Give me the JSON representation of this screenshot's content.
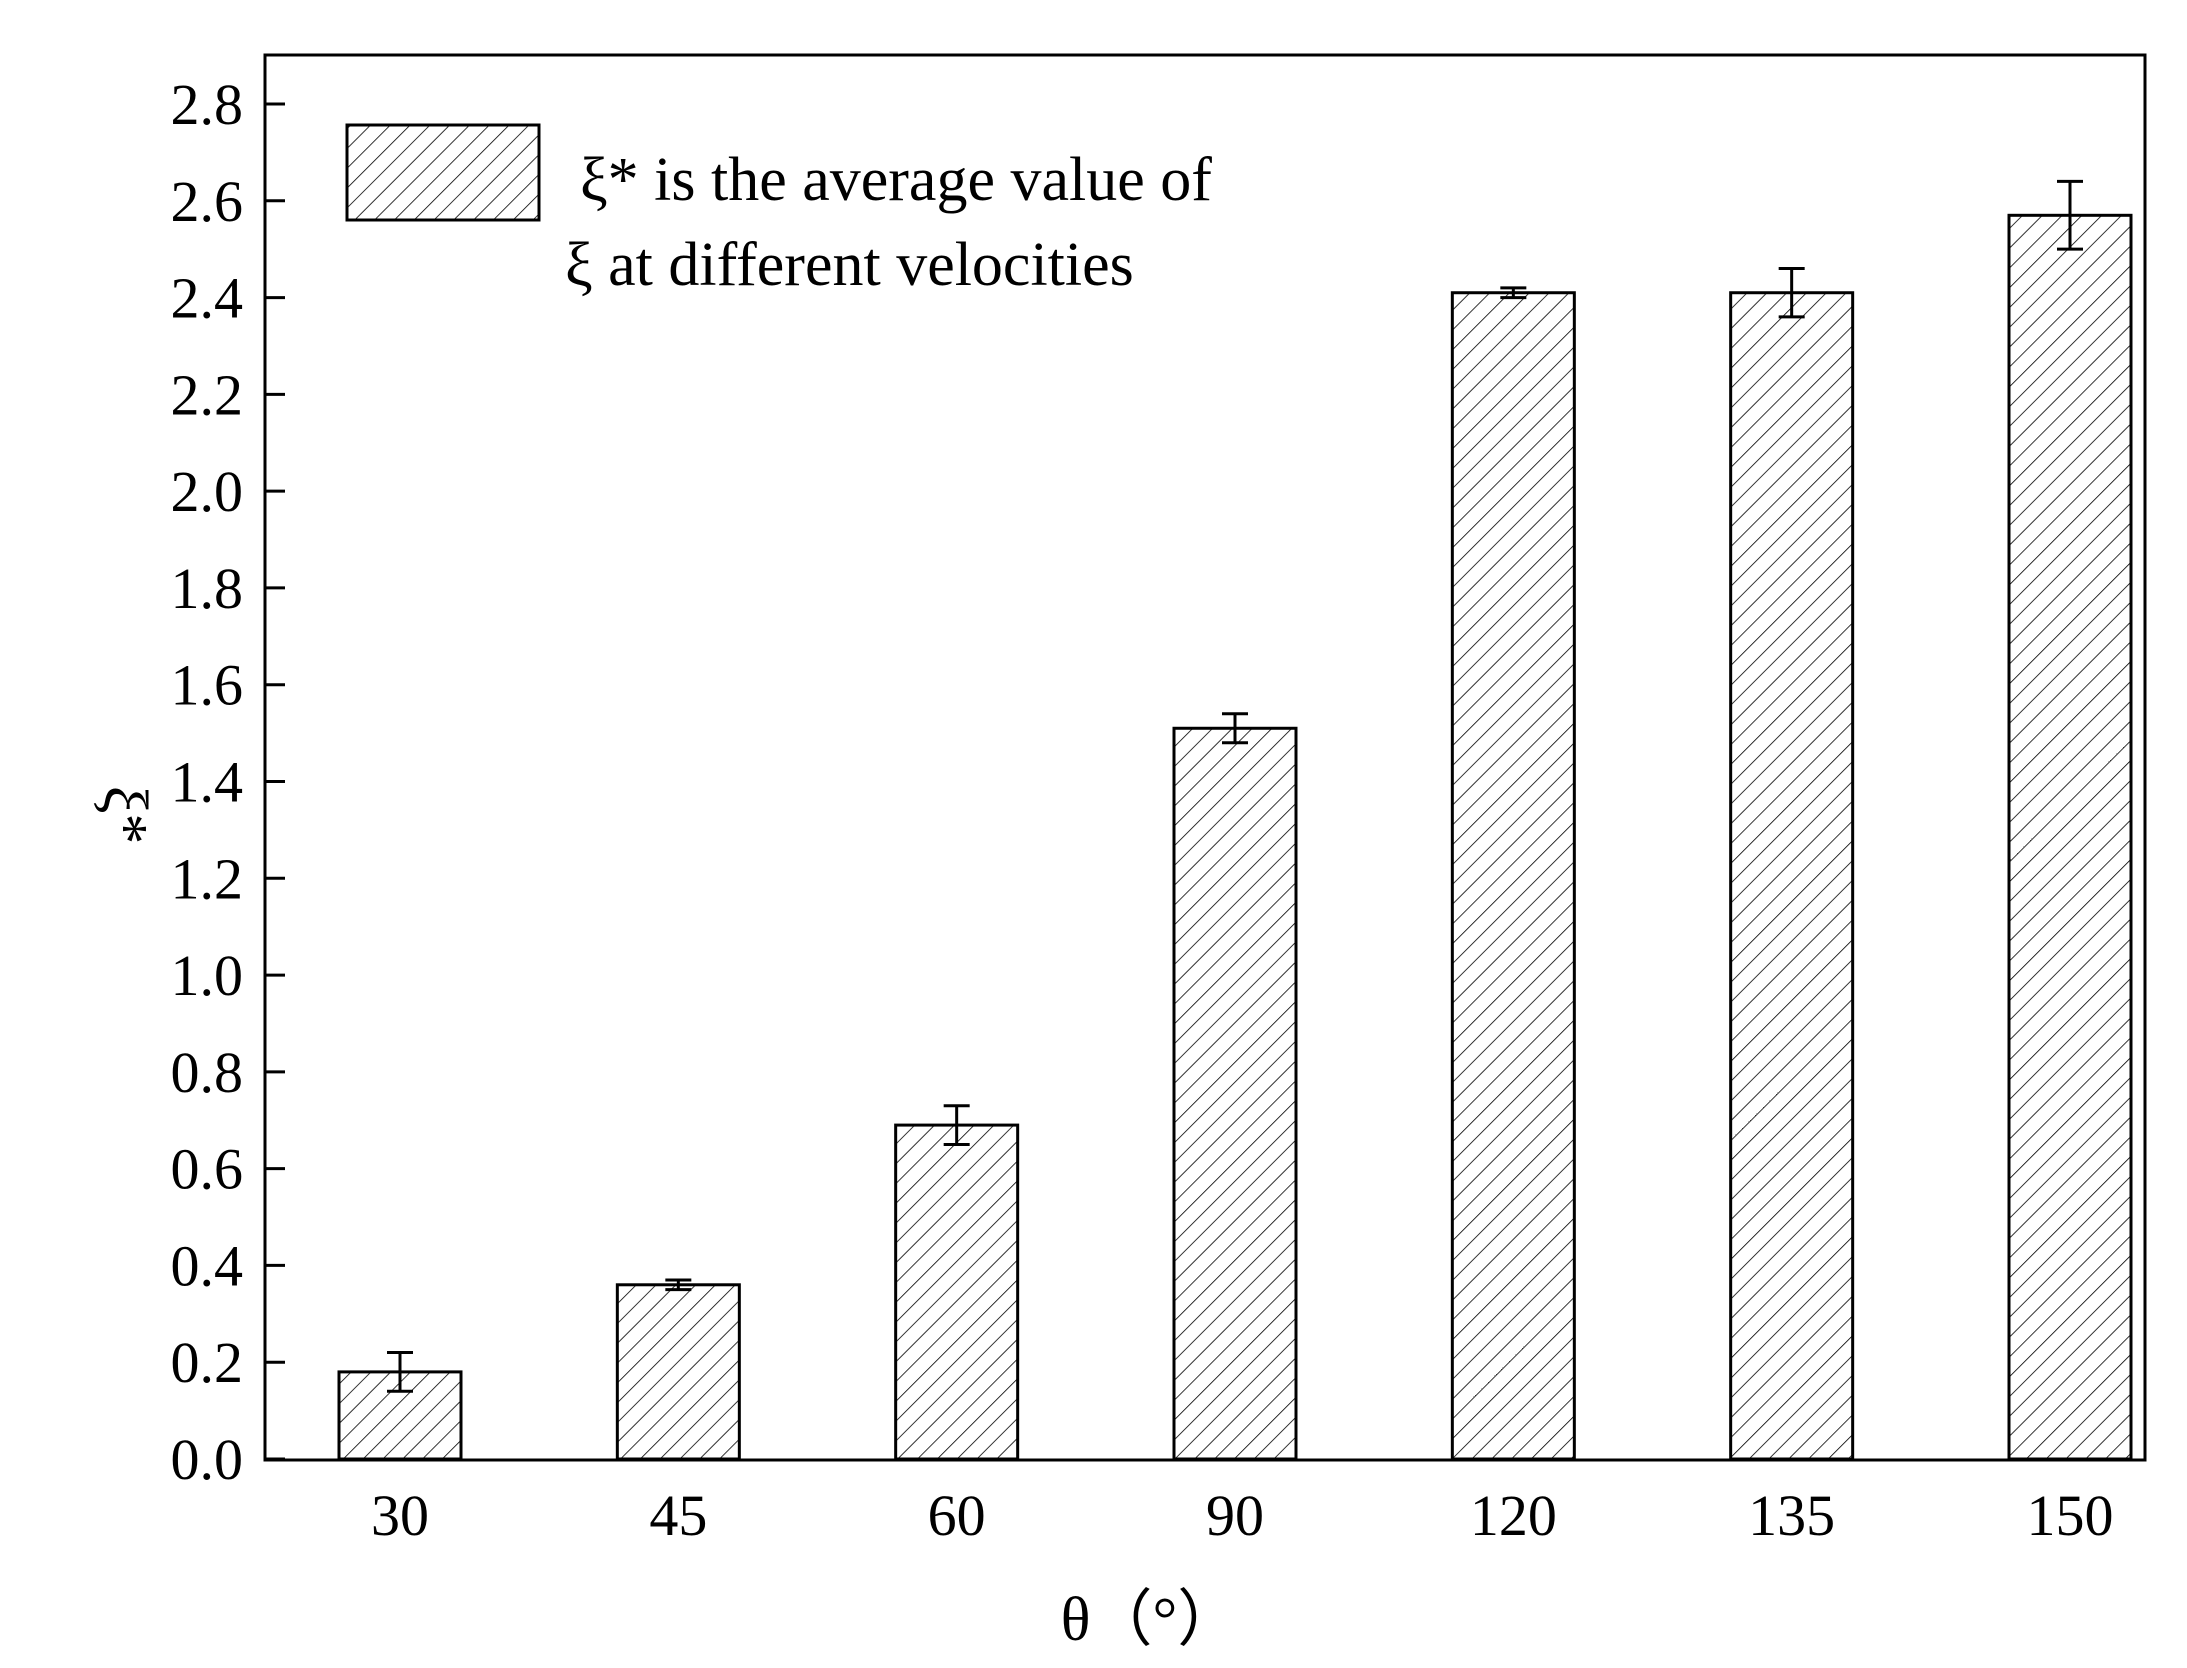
{
  "chart_data": {
    "type": "bar",
    "categories": [
      "30",
      "45",
      "60",
      "90",
      "120",
      "135",
      "150"
    ],
    "values": [
      0.18,
      0.36,
      0.69,
      1.51,
      2.41,
      2.41,
      2.57
    ],
    "errors": [
      0.04,
      0.01,
      0.04,
      0.03,
      0.01,
      0.05,
      0.07
    ],
    "ylim": [
      0.0,
      2.9
    ],
    "yticks": [
      "0.0",
      "0.2",
      "0.4",
      "0.6",
      "0.8",
      "1.0",
      "1.2",
      "1.4",
      "1.6",
      "1.8",
      "2.0",
      "2.2",
      "2.4",
      "2.6",
      "2.8"
    ],
    "xlabel": "θ（°）",
    "ylabel": "ξ*",
    "legend": {
      "line1": "ξ*  is the average value of",
      "line2": "ξ at different velocities",
      "position": "top-left"
    },
    "bar_pattern": "diagonal-hatch",
    "colors": {
      "bar_fill": "#ffffff",
      "bar_stroke": "#000000",
      "hatch": "#000000"
    }
  }
}
